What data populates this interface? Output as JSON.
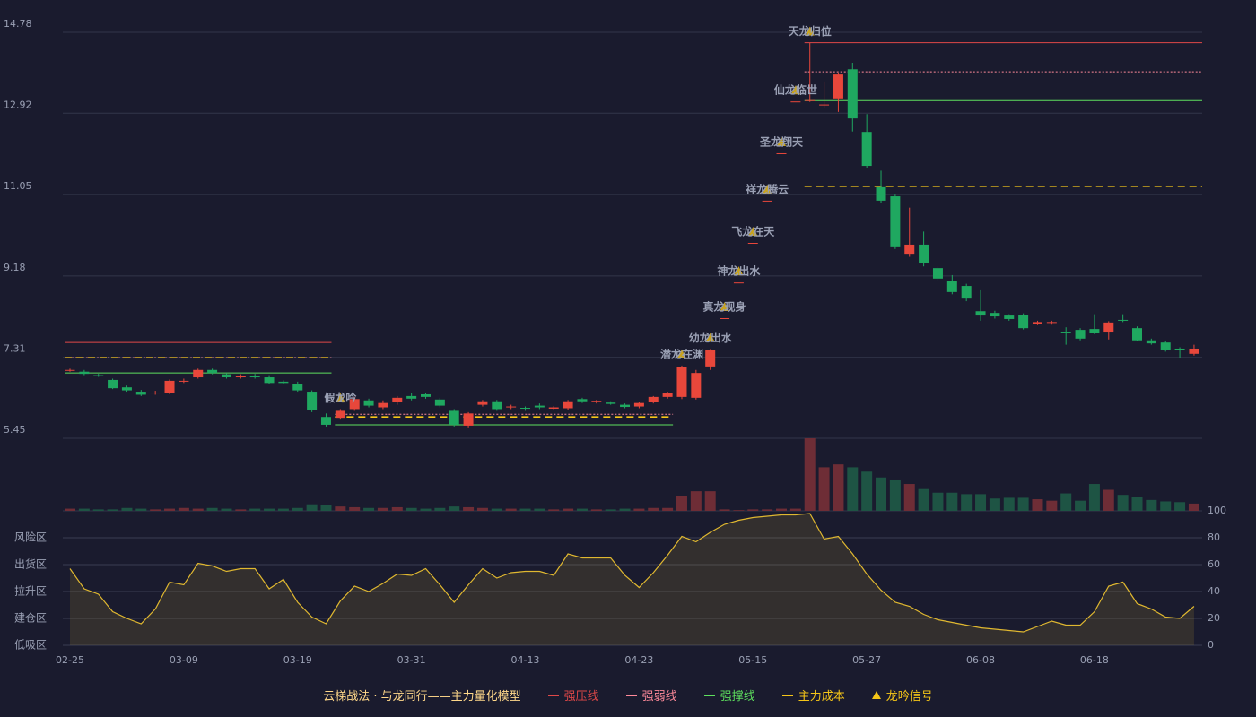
{
  "chart_data": {
    "type": "candlestick",
    "categories": [
      "02-25",
      null,
      null,
      null,
      null,
      null,
      null,
      null,
      "03-09",
      null,
      null,
      null,
      null,
      null,
      null,
      null,
      "03-19",
      null,
      null,
      null,
      null,
      null,
      null,
      null,
      "03-31",
      null,
      null,
      null,
      null,
      null,
      null,
      null,
      "04-13",
      null,
      null,
      null,
      null,
      null,
      null,
      null,
      "04-23",
      null,
      null,
      null,
      null,
      null,
      null,
      null,
      "05-15",
      null,
      null,
      null,
      null,
      null,
      null,
      null,
      "05-27",
      null,
      null,
      null,
      null,
      null,
      null,
      null,
      "06-08",
      null,
      null,
      null,
      null,
      null,
      null,
      null,
      "06-18",
      null,
      null,
      null,
      null,
      null,
      null,
      null
    ],
    "open": [
      7.0,
      6.98,
      6.9,
      6.79,
      6.62,
      6.52,
      6.48,
      6.48,
      6.75,
      6.85,
      7.02,
      6.92,
      6.85,
      6.88,
      6.85,
      6.75,
      6.7,
      6.52,
      5.94,
      5.92,
      6.12,
      6.32,
      6.16,
      6.28,
      6.42,
      6.46,
      6.34,
      6.08,
      5.74,
      6.22,
      6.3,
      6.16,
      6.15,
      6.2,
      6.13,
      6.14,
      6.35,
      6.29,
      6.27,
      6.22,
      6.18,
      6.28,
      6.4,
      6.4,
      6.38,
      7.1,
      8.21,
      9.03,
      9.94,
      10.91,
      12.0,
      13.19,
      13.2,
      13.1,
      13.26,
      13.93,
      12.49,
      11.22,
      11.01,
      9.69,
      9.9,
      9.36,
      9.07,
      8.95,
      8.37,
      8.33,
      8.27,
      8.29,
      8.08,
      8.1,
      7.9,
      7.94,
      7.96,
      7.9,
      8.17,
      7.98,
      7.7,
      7.65,
      7.51,
      7.39
    ],
    "high": [
      7.05,
      7.02,
      6.93,
      6.82,
      6.66,
      6.56,
      6.54,
      6.8,
      6.82,
      7.05,
      7.05,
      6.95,
      6.92,
      6.93,
      6.9,
      6.78,
      6.75,
      6.55,
      6.02,
      6.12,
      6.4,
      6.36,
      6.32,
      6.42,
      6.48,
      6.5,
      6.38,
      6.12,
      6.05,
      6.33,
      6.33,
      6.22,
      6.18,
      6.25,
      6.19,
      6.33,
      6.38,
      6.33,
      6.3,
      6.25,
      6.29,
      6.42,
      6.52,
      7.12,
      7.02,
      7.5,
      8.21,
      9.03,
      9.94,
      10.91,
      12.0,
      13.19,
      14.54,
      13.65,
      13.85,
      14.08,
      12.9,
      11.6,
      11.05,
      10.75,
      10.2,
      9.4,
      9.2,
      9.0,
      8.85,
      8.38,
      8.3,
      8.32,
      8.15,
      8.15,
      8.0,
      7.98,
      8.3,
      8.14,
      8.3,
      8.02,
      7.74,
      7.68,
      7.54,
      7.6
    ],
    "low": [
      6.98,
      6.9,
      6.86,
      6.58,
      6.52,
      6.42,
      6.45,
      6.46,
      6.72,
      6.82,
      6.92,
      6.82,
      6.82,
      6.82,
      6.7,
      6.7,
      6.52,
      6.05,
      5.72,
      5.88,
      6.08,
      6.16,
      6.12,
      6.22,
      6.32,
      6.36,
      6.16,
      5.72,
      5.7,
      6.18,
      6.08,
      6.12,
      6.08,
      6.12,
      6.1,
      6.1,
      6.26,
      6.25,
      6.22,
      6.14,
      6.14,
      6.25,
      6.36,
      6.35,
      6.34,
      7.02,
      8.21,
      9.03,
      9.94,
      10.91,
      12.0,
      13.19,
      13.18,
      13.05,
      12.95,
      12.5,
      11.65,
      10.85,
      9.8,
      9.62,
      9.4,
      9.08,
      8.76,
      8.6,
      8.15,
      8.2,
      8.15,
      7.95,
      8.05,
      8.06,
      7.6,
      7.7,
      7.84,
      7.72,
      8.12,
      7.68,
      7.6,
      7.44,
      7.3,
      7.35
    ],
    "close": [
      7.02,
      6.93,
      6.88,
      6.6,
      6.55,
      6.45,
      6.5,
      6.77,
      6.77,
      7.02,
      6.95,
      6.85,
      6.88,
      6.85,
      6.72,
      6.72,
      6.55,
      6.09,
      5.76,
      6.08,
      6.35,
      6.2,
      6.26,
      6.38,
      6.36,
      6.4,
      6.2,
      5.76,
      6.02,
      6.3,
      6.12,
      6.18,
      6.13,
      6.16,
      6.16,
      6.3,
      6.3,
      6.31,
      6.24,
      6.17,
      6.26,
      6.4,
      6.5,
      7.08,
      6.95,
      7.47,
      8.21,
      9.03,
      9.94,
      10.91,
      12.0,
      13.19,
      13.22,
      13.12,
      13.81,
      12.8,
      11.71,
      10.91,
      9.84,
      9.9,
      9.47,
      9.12,
      8.81,
      8.66,
      8.27,
      8.25,
      8.19,
      7.98,
      8.12,
      8.12,
      7.88,
      7.74,
      7.86,
      8.11,
      8.15,
      7.7,
      7.63,
      7.47,
      7.47,
      7.51
    ],
    "up_color": "#e8473b",
    "down_color": "#1fa860",
    "ylim": [
      5.45,
      14.78
    ],
    "yticks": [
      14.78,
      12.92,
      11.05,
      9.18,
      7.31,
      5.45
    ],
    "grid": true,
    "levels": [
      {
        "name": "强压线",
        "color": "#e04848",
        "dash": "none",
        "segments": [
          {
            "from": 0,
            "to": 18,
            "value": 7.65
          },
          {
            "from": 19,
            "to": 42,
            "value": 6.1
          },
          {
            "from": 52,
            "to": 79,
            "value": 14.54
          }
        ]
      },
      {
        "name": "强弱线",
        "color": "#ff8a9a",
        "dash": "2,2",
        "segments": [
          {
            "from": 0,
            "to": 18,
            "value": 7.3
          },
          {
            "from": 19,
            "to": 42,
            "value": 6.0
          },
          {
            "from": 52,
            "to": 79,
            "value": 13.87
          }
        ]
      },
      {
        "name": "强撑线",
        "color": "#5ee05e",
        "dash": "none",
        "segments": [
          {
            "from": 0,
            "to": 18,
            "value": 6.95
          },
          {
            "from": 19,
            "to": 42,
            "value": 5.76
          },
          {
            "from": 52,
            "to": 79,
            "value": 13.21
          }
        ]
      },
      {
        "name": "主力成本",
        "color": "#f5c518",
        "dash": "8,5",
        "segments": [
          {
            "from": 0,
            "to": 18,
            "value": 7.3
          },
          {
            "from": 19,
            "to": 42,
            "value": 5.94
          },
          {
            "from": 52,
            "to": 79,
            "value": 11.24
          }
        ]
      }
    ],
    "signal_name": "龙吟信号",
    "signal_color": "#f5c518",
    "signals": [
      {
        "index": 19,
        "label": "假龙吟",
        "color": "#ff6b7a"
      },
      {
        "index": 43,
        "label": "潜龙在渊",
        "color": "#ffd84a"
      },
      {
        "index": 45,
        "label": "幼龙出水",
        "color": "#ffd84a"
      },
      {
        "index": 46,
        "label": "真龙现身",
        "color": "#ffd84a"
      },
      {
        "index": 47,
        "label": "神龙出水",
        "color": "#ffd84a"
      },
      {
        "index": 48,
        "label": "飞龙在天",
        "color": "#ffd84a"
      },
      {
        "index": 49,
        "label": "祥龙腾云",
        "color": "#ffd84a"
      },
      {
        "index": 50,
        "label": "圣龙翔天",
        "color": "#ffd84a"
      },
      {
        "index": 51,
        "label": "仙龙临世",
        "color": "#ffd84a"
      },
      {
        "index": 52,
        "label": "天龙归位",
        "color": "#ffd84a"
      }
    ],
    "volume": {
      "values": [
        3,
        3,
        2,
        2,
        4,
        3,
        2,
        3,
        4,
        3,
        4,
        3,
        2,
        3,
        3,
        3,
        4,
        9,
        8,
        6,
        5,
        4,
        4,
        5,
        4,
        3,
        4,
        6,
        5,
        4,
        3,
        3,
        3,
        3,
        2,
        3,
        3,
        2,
        2,
        3,
        3,
        4,
        4,
        21,
        27,
        27,
        2,
        1,
        2,
        2,
        3,
        3,
        100,
        60,
        64,
        60,
        54,
        46,
        42,
        37,
        30,
        25,
        25,
        23,
        23,
        17,
        18,
        18,
        16,
        14,
        24,
        14,
        37,
        29,
        22,
        19,
        15,
        13,
        12,
        10
      ],
      "ylim": [
        0,
        100
      ],
      "up_color": "#6e2d36",
      "down_color": "#1e5444"
    },
    "oscillator": {
      "values": [
        57,
        42,
        38,
        25,
        20,
        16,
        27,
        47,
        45,
        61,
        59,
        55,
        57,
        57,
        42,
        49,
        32,
        21,
        16,
        33,
        44,
        40,
        46,
        53,
        52,
        57,
        45,
        32,
        45,
        57,
        50,
        54,
        55,
        55,
        52,
        68,
        65,
        65,
        65,
        52,
        43,
        54,
        67,
        81,
        77,
        84,
        90,
        93,
        95,
        96,
        97,
        97,
        98,
        79,
        81,
        68,
        53,
        41,
        32,
        29,
        23,
        19,
        17,
        15,
        13,
        12,
        11,
        10,
        14,
        18,
        15,
        15,
        25,
        44,
        47,
        31,
        27,
        21,
        20,
        29
      ],
      "color": "#e0b830",
      "ylim": [
        0,
        100
      ],
      "yticks": [
        0,
        20,
        40,
        60,
        80,
        100
      ],
      "ytick_colors": [
        "#ff4040",
        "#ff6b81",
        "#4d8fff",
        "#e055e0",
        "#f0a030",
        "#5ee05e"
      ],
      "zones": [
        {
          "value": 80,
          "label": "风险区",
          "color": "#f0a030"
        },
        {
          "value": 60,
          "label": "出货区",
          "color": "#e040e0"
        },
        {
          "value": 40,
          "label": "拉升区",
          "color": "#4d8fff"
        },
        {
          "value": 20,
          "label": "建仓区",
          "color": "#ff5a6a"
        },
        {
          "value": 0,
          "label": "低吸区",
          "color": "#ff4040"
        }
      ]
    },
    "legend_title": "云梯战法 · 与龙同行——主力量化模型"
  }
}
